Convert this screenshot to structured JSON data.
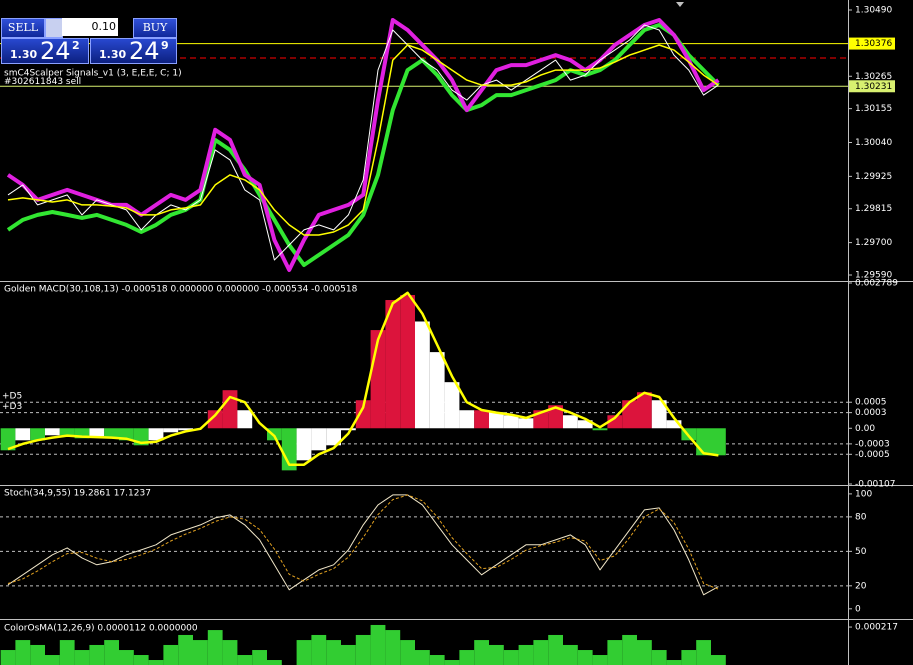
{
  "trade_panel": {
    "sell": "SELL",
    "lot": "0.10",
    "buy": "BUY",
    "bid": {
      "big": "1.30",
      "pips": "24",
      "frac": "2"
    },
    "ask": {
      "big": "1.30",
      "pips": "24",
      "frac": "9"
    }
  },
  "chart_data": [
    {
      "type": "line",
      "title": "smC4Scalper Signals_v1 (3, E,E,E, C; 1)",
      "annotation": "#302611843 sell",
      "ylim": [
        1.29573,
        1.30524
      ],
      "yticks": [
        {
          "value": 1.3049,
          "label": "1.30490"
        },
        {
          "value": 1.30265,
          "label": "1.30265"
        },
        {
          "value": 1.30155,
          "label": "1.30155"
        },
        {
          "value": 1.3004,
          "label": "1.30040"
        },
        {
          "value": 1.29925,
          "label": "1.29925"
        },
        {
          "value": 1.29815,
          "label": "1.29815"
        },
        {
          "value": 1.297,
          "label": "1.29700"
        },
        {
          "value": 1.2959,
          "label": "1.29590"
        }
      ],
      "price_lines": [
        {
          "value": 1.30376,
          "label": "1.30376",
          "color": "#ffff00"
        },
        {
          "value": 1.30231,
          "label": "1.30231",
          "color": "#d8f070"
        }
      ],
      "dashed_lines": [
        {
          "value": 1.30327,
          "color": "#ff0000"
        }
      ],
      "series": [
        {
          "color": "#32e632",
          "width": 4,
          "values": [
            1.29743,
            1.29777,
            1.29794,
            1.29804,
            1.29794,
            1.29784,
            1.29794,
            1.29777,
            1.2976,
            1.29736,
            1.2976,
            1.29794,
            1.29811,
            1.29845,
            1.30049,
            1.30015,
            1.29947,
            1.29862,
            1.29777,
            1.29692,
            1.29624,
            1.29658,
            1.29692,
            1.29726,
            1.29794,
            1.2993,
            1.3015,
            1.30286,
            1.3032,
            1.30269,
            1.30201,
            1.3015,
            1.30167,
            1.30201,
            1.30201,
            1.30218,
            1.30235,
            1.30252,
            1.30286,
            1.30269,
            1.30286,
            1.3032,
            1.30371,
            1.30422,
            1.30439,
            1.30405,
            1.30337,
            1.30286,
            1.30235
          ]
        },
        {
          "color": "#e020e0",
          "width": 4,
          "values": [
            1.2993,
            1.29896,
            1.29845,
            1.29862,
            1.29879,
            1.29862,
            1.29845,
            1.29828,
            1.29828,
            1.29794,
            1.29828,
            1.29862,
            1.29845,
            1.29879,
            1.30083,
            1.30049,
            1.2993,
            1.29896,
            1.29709,
            1.29607,
            1.29709,
            1.29794,
            1.29811,
            1.29828,
            1.29862,
            1.30184,
            1.30456,
            1.30422,
            1.30371,
            1.3032,
            1.30252,
            1.3015,
            1.30218,
            1.30286,
            1.30303,
            1.30303,
            1.3032,
            1.30337,
            1.3032,
            1.30286,
            1.3032,
            1.30371,
            1.30405,
            1.30439,
            1.30456,
            1.30405,
            1.3032,
            1.30218,
            1.30252
          ]
        },
        {
          "color": "#ffffff",
          "width": 1,
          "values": [
            1.29862,
            1.29896,
            1.29828,
            1.29845,
            1.29862,
            1.29794,
            1.29845,
            1.29828,
            1.29811,
            1.29743,
            1.29794,
            1.29828,
            1.29811,
            1.29845,
            1.30015,
            1.29981,
            1.29879,
            1.29845,
            1.29641,
            1.29692,
            1.29743,
            1.2976,
            1.29743,
            1.29794,
            1.29913,
            1.30286,
            1.30422,
            1.30371,
            1.3032,
            1.30286,
            1.30218,
            1.30184,
            1.30235,
            1.30252,
            1.30218,
            1.30252,
            1.30286,
            1.3032,
            1.30252,
            1.30269,
            1.3032,
            1.30354,
            1.30388,
            1.30439,
            1.30422,
            1.30337,
            1.30286,
            1.30201,
            1.30235
          ]
        },
        {
          "color": "#ffff00",
          "width": 1.5,
          "values": [
            1.29845,
            1.29852,
            1.29845,
            1.29838,
            1.29845,
            1.29828,
            1.29828,
            1.29824,
            1.29818,
            1.29794,
            1.29794,
            1.29811,
            1.29818,
            1.29828,
            1.29896,
            1.2993,
            1.29913,
            1.29879,
            1.29811,
            1.2976,
            1.29726,
            1.29726,
            1.29736,
            1.2976,
            1.29811,
            1.30049,
            1.3032,
            1.30371,
            1.30354,
            1.3032,
            1.30286,
            1.30252,
            1.30235,
            1.30235,
            1.30235,
            1.30246,
            1.30269,
            1.30286,
            1.30286,
            1.30286,
            1.30293,
            1.30313,
            1.30337,
            1.30354,
            1.30371,
            1.30354,
            1.30313,
            1.30269,
            1.30235
          ]
        }
      ]
    },
    {
      "type": "macd",
      "title": "Golden MACD(30,108,13) -0.000518 0.000000 0.000000 -0.000534 -0.000518",
      "ylim": [
        -0.00107,
        0.002789
      ],
      "yticks": [
        0.002789,
        0.0005,
        0.0003,
        {
          "value": 0,
          "label": "0.00"
        },
        -0.0003,
        -0.0005,
        -0.00107
      ],
      "levels": [
        {
          "value": 0.0005,
          "label": "+D5"
        },
        {
          "value": 0.0003,
          "label": "+D3"
        },
        {
          "value": -0.0003
        },
        {
          "value": -0.0005
        }
      ],
      "colors": [
        "#dc143c",
        "#ffffff",
        "#32cd32"
      ],
      "series": [
        {
          "values": [
            -0.000423,
            -0.000231,
            -0.000231,
            -0.000135,
            -0.000135,
            -0.000192,
            -0.000154,
            -0.000192,
            -0.000231,
            -0.000327,
            -0.000231,
            -7.7e-05,
            -3.8e-05,
            0,
            0.000346,
            0.000731,
            0.000346,
            0,
            -0.000231,
            -0.000808,
            -0.000615,
            -0.000423,
            -0.000327,
            -3.8e-05,
            0.000538,
            0.001885,
            0.002462,
            0.002558,
            0.00205,
            0.001462,
            0.000885,
            0.000346,
            0.000346,
            0.000308,
            0.00025,
            0.000192,
            0.000346,
            0.000442,
            0.00025,
            0.000154,
            -3.8e-05,
            0.00025,
            0.000538,
            0.000692,
            0.000538,
            0.000154,
            -0.000231,
            -0.000519,
            -0.000519
          ]
        },
        {
          "color": "#ffff00",
          "width": 2.5,
          "values": [
            -0.0004,
            -0.0003,
            -0.00023,
            -0.00018,
            -0.00014,
            -0.00016,
            -0.00017,
            -0.00018,
            -0.0002,
            -0.00028,
            -0.00026,
            -0.00014,
            -6e-05,
            -1e-05,
            0.00025,
            0.0006,
            0.0005,
            0.0001,
            -0.00015,
            -0.0007,
            -0.0007,
            -0.0005,
            -0.00038,
            -0.0001,
            0.0004,
            0.0017,
            0.0024,
            0.0026,
            0.0022,
            0.0016,
            0.001,
            0.0005,
            0.00035,
            0.0003,
            0.00026,
            0.0002,
            0.0003,
            0.0004,
            0.0003,
            0.00018,
            2e-05,
            0.0002,
            0.0005,
            0.00068,
            0.0006,
            0.0002,
            -0.00015,
            -0.00048,
            -0.00052
          ]
        }
      ]
    },
    {
      "type": "line",
      "title": "Stoch(34,9,55) 19.2861 17.1237",
      "ylim": [
        -8,
        106
      ],
      "yticks": [
        100,
        80,
        50,
        20,
        0
      ],
      "levels": [
        {
          "value": 80
        },
        {
          "value": 50
        },
        {
          "value": 20
        }
      ],
      "series": [
        {
          "color": "#f0e6c8",
          "width": 1,
          "values": [
            20.9,
            29.6,
            38.3,
            47,
            53,
            44.3,
            38.3,
            40.9,
            47,
            51.3,
            55.7,
            64.3,
            68.7,
            73,
            79.1,
            81.7,
            73,
            60,
            38.3,
            16.5,
            25.2,
            33.9,
            38.3,
            51.3,
            73,
            90.4,
            99.1,
            99.1,
            90.4,
            73,
            55.7,
            42.6,
            29.6,
            38.3,
            47,
            55.7,
            55.7,
            60,
            64.3,
            55.7,
            33.9,
            51.3,
            68.7,
            86.1,
            87.8,
            68.7,
            42.6,
            12.2,
            19.3
          ]
        },
        {
          "color": "#e0a020",
          "width": 1,
          "dash": "3,2",
          "values": [
            22,
            26,
            33,
            41,
            48,
            49,
            44,
            41,
            43,
            47,
            52,
            59,
            65,
            70,
            76,
            80,
            78,
            69,
            52,
            30,
            24,
            30,
            35,
            45,
            62,
            82,
            95,
            99,
            94,
            80,
            62,
            48,
            35,
            36,
            43,
            51,
            55,
            58,
            62,
            59,
            42,
            46,
            62,
            80,
            87,
            75,
            52,
            22,
            17.1
          ]
        }
      ]
    },
    {
      "type": "bar",
      "title": "ColorOsMA(12,26,9) 0.0000112 0.0000000",
      "ylim": [
        0,
        0.000249
      ],
      "yticks": [
        0.000217
      ],
      "color": "#32cd32",
      "values": [
        9.52e-05,
        0.000148,
        0.000122,
        6.88e-05,
        0.000148,
        9.52e-05,
        0.000122,
        0.000148,
        9.52e-05,
        6.88e-05,
        4.23e-05,
        0.000122,
        0.000175,
        0.000148,
        0.000201,
        0.000148,
        6.88e-05,
        9.52e-05,
        4.23e-05,
        1.59e-05,
        0.000148,
        0.000175,
        0.000148,
        0.000122,
        0.000175,
        0.000228,
        0.000201,
        0.000148,
        9.52e-05,
        6.88e-05,
        4.23e-05,
        9.52e-05,
        0.000148,
        0.000122,
        9.52e-05,
        0.000122,
        0.000148,
        0.000175,
        0.000122,
        9.52e-05,
        6.88e-05,
        0.000148,
        0.000175,
        0.000148,
        9.52e-05,
        4.23e-05,
        9.52e-05,
        0.000148,
        6.88e-05
      ]
    }
  ]
}
